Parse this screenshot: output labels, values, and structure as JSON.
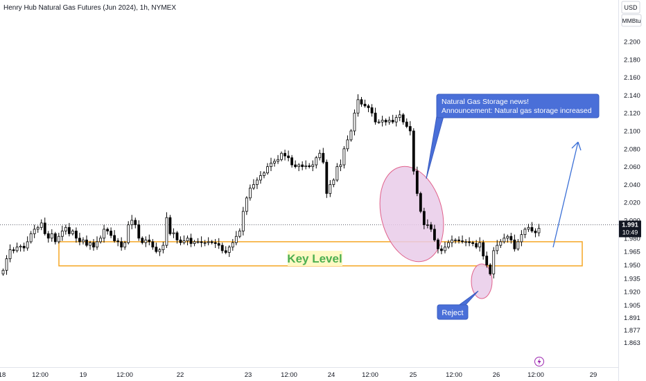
{
  "header": {
    "title": "Henry Hub Natural Gas Futures (Jun 2024), 1h, NYMEX"
  },
  "scale_panel": {
    "currency": "USD",
    "unit": "MMBtu"
  },
  "price_label": {
    "price": "1.991",
    "countdown": "10:49",
    "dash_price": 1.995
  },
  "annotations": {
    "key_level": "Key Level",
    "storage_line1": "Natural Gas Storage news!",
    "storage_line2": "Announcement: Natural gas storage increased",
    "reject": "Reject"
  },
  "colors": {
    "up": "#ffffff",
    "down": "#000000",
    "key_level_border": "#f5a623",
    "key_level_text": "#4caf50",
    "callout_fill": "#4a6fd8",
    "ellipse_fill": "#e9cbe9",
    "ellipse_stroke": "#e0608a",
    "arrow": "#3a6fd6"
  },
  "chart_data": {
    "type": "candlestick",
    "title": "Henry Hub Natural Gas Futures (Jun 2024), 1h, NYMEX",
    "ylim": [
      1.855,
      2.215
    ],
    "yticks": [
      2.2,
      2.18,
      2.16,
      2.14,
      2.12,
      2.1,
      2.08,
      2.06,
      2.04,
      2.02,
      2.0,
      1.98,
      1.965,
      1.95,
      1.935,
      1.92,
      1.905,
      1.891,
      1.877,
      1.863
    ],
    "x_labels": [
      "18",
      "12:00",
      "19",
      "12:00",
      "22",
      "23",
      "12:00",
      "24",
      "12:00",
      "25",
      "12:00",
      "26",
      "12:00",
      "29"
    ],
    "key_level_zone": [
      1.949,
      1.976
    ],
    "series": [
      {
        "close": [
          1.944,
          1.957,
          1.967,
          1.966,
          1.97,
          1.971,
          1.969,
          1.976,
          1.985,
          1.99,
          1.992,
          1.997,
          1.985,
          1.98,
          1.985,
          1.976,
          1.982,
          1.988,
          1.992,
          1.985,
          1.988,
          1.98,
          1.976,
          1.978,
          1.972,
          1.975,
          1.97,
          1.976,
          1.98,
          1.99,
          1.988,
          1.983,
          1.977,
          1.976,
          1.97,
          1.975,
          1.995,
          2.0,
          1.995,
          1.98,
          1.975,
          1.978,
          1.976,
          1.97,
          1.965,
          1.967,
          1.972,
          2.003,
          1.985,
          1.986,
          1.978,
          1.975,
          1.977,
          1.98,
          1.974,
          1.976,
          1.976,
          1.975,
          1.975,
          1.976,
          1.975,
          1.974,
          1.972,
          1.966,
          1.964,
          1.97,
          1.975,
          1.982,
          1.988,
          2.01,
          2.025,
          2.036,
          2.04,
          2.045,
          2.05,
          2.053,
          2.06,
          2.064,
          2.066,
          2.068,
          2.075,
          2.072,
          2.07,
          2.062,
          2.06,
          2.062,
          2.06,
          2.061,
          2.06,
          2.062,
          2.07,
          2.075,
          2.065,
          2.03,
          2.04,
          2.045,
          2.06,
          2.062,
          2.08,
          2.09,
          2.1,
          2.12,
          2.135,
          2.13,
          2.128,
          2.126,
          2.12,
          2.11,
          2.11,
          2.112,
          2.11,
          2.112,
          2.11,
          2.115,
          2.118,
          2.11,
          2.105,
          2.1,
          2.055,
          2.03,
          2.01,
          1.995,
          1.995,
          1.99,
          1.978,
          1.968,
          1.966,
          1.97,
          1.975,
          1.978,
          1.978,
          1.977,
          1.976,
          1.976,
          1.975,
          1.974,
          1.97,
          1.975,
          1.96,
          1.95,
          1.94,
          1.966,
          1.972,
          1.976,
          1.98,
          1.982,
          1.978,
          1.968,
          1.976,
          1.984,
          1.99,
          1.992,
          1.988,
          1.986,
          1.991
        ]
      }
    ]
  }
}
